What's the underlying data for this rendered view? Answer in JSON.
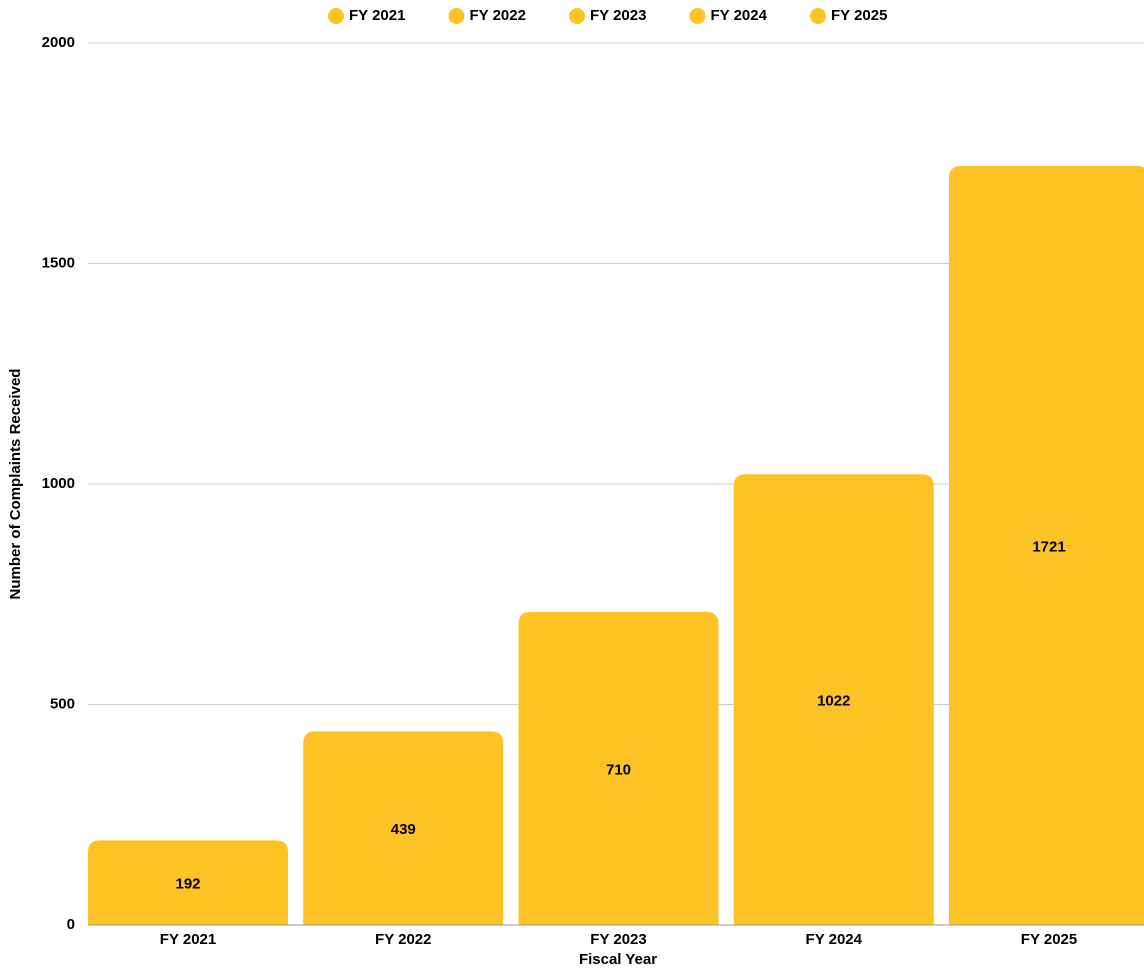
{
  "chart_data": {
    "type": "bar",
    "x_label": "Fiscal Year",
    "y_label": "Number of Complaints Received",
    "categories": [
      "FY 2021",
      "FY 2022",
      "FY 2023",
      "FY 2024",
      "FY 2025"
    ],
    "series": [
      {
        "name": "FY 2021",
        "color": "#fdc325",
        "values": [
          192,
          null,
          null,
          null,
          null
        ]
      },
      {
        "name": "FY 2022",
        "color": "#fdc325",
        "values": [
          null,
          439,
          null,
          null,
          null
        ]
      },
      {
        "name": "FY 2023",
        "color": "#fdc325",
        "values": [
          null,
          null,
          710,
          null,
          null
        ]
      },
      {
        "name": "FY 2024",
        "color": "#fdc325",
        "values": [
          null,
          null,
          null,
          1022,
          null
        ]
      },
      {
        "name": "FY 2025",
        "color": "#fdc325",
        "values": [
          null,
          null,
          null,
          null,
          1721
        ]
      }
    ],
    "ylim": [
      0,
      2000
    ],
    "yticks": [
      0,
      500,
      1000,
      1500,
      2000
    ],
    "grid": true,
    "legend": "top"
  }
}
